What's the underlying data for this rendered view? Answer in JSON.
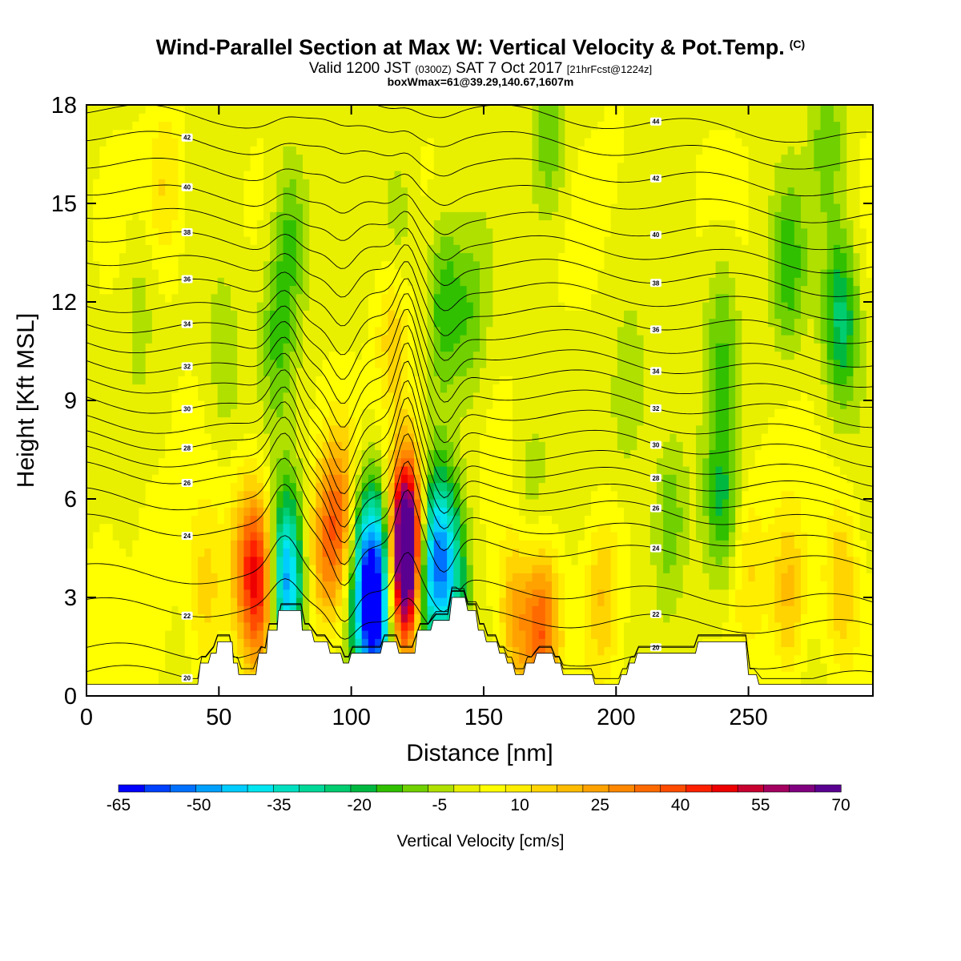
{
  "header": {
    "title": "Wind-Parallel Section at Max W: Vertical Velocity & Pot.Temp.",
    "copyright": "(C)",
    "valid_prefix": "Valid 1200 JST",
    "valid_utc": "(0300Z)",
    "valid_date": "SAT 7 Oct 2017",
    "forecast": "[21hrFcst@1224z]",
    "box_info": "boxWmax=61@39.29,140.67,1607m"
  },
  "chart_data": {
    "type": "heatmap",
    "title": "Wind-Parallel Section at Max W: Vertical Velocity & Pot.Temp.",
    "xlabel": "Distance [nm]",
    "ylabel": "Height [Kft MSL]",
    "xlim": [
      0,
      297
    ],
    "ylim": [
      0,
      18
    ],
    "x_ticks": [
      0,
      50,
      100,
      150,
      200,
      250
    ],
    "y_ticks": [
      0,
      3,
      6,
      9,
      12,
      15,
      18
    ],
    "colorbar": {
      "title": "Vertical Velocity [cm/s]",
      "tick_labels": [
        "-65",
        "-50",
        "-35",
        "-20",
        "-5",
        "10",
        "25",
        "40",
        "55",
        "70"
      ],
      "levels": [
        -65,
        -60,
        -55,
        -50,
        -45,
        -40,
        -35,
        -30,
        -25,
        -20,
        -15,
        -10,
        -5,
        0,
        5,
        10,
        15,
        20,
        25,
        30,
        35,
        40,
        45,
        50,
        55,
        60,
        65,
        70
      ],
      "colors": [
        "#0000ff",
        "#0040ff",
        "#0070ff",
        "#00a0ff",
        "#00ccff",
        "#00e5f0",
        "#00e0c0",
        "#00d898",
        "#00cc70",
        "#00b840",
        "#30c000",
        "#70d000",
        "#b0e000",
        "#e8f000",
        "#ffff00",
        "#ffee00",
        "#ffd400",
        "#ffbb00",
        "#ffa200",
        "#ff8800",
        "#ff6a00",
        "#ff4c00",
        "#ff2000",
        "#ee0000",
        "#c80030",
        "#a40060",
        "#800080",
        "#5a0090"
      ]
    },
    "w_features": [
      {
        "x": 8,
        "z": 3,
        "w": 5
      },
      {
        "x": 25,
        "z": 4,
        "w": 6
      },
      {
        "x": 30,
        "z": 15.5,
        "w": 12
      },
      {
        "x": 20,
        "z": 12,
        "w": -7
      },
      {
        "x": 45,
        "z": 3,
        "w": 14
      },
      {
        "x": 52,
        "z": 10,
        "w": -8
      },
      {
        "x": 60,
        "z": 4,
        "w": 22
      },
      {
        "x": 66,
        "z": 3.5,
        "w": 42
      },
      {
        "x": 72,
        "z": 11,
        "w": -14
      },
      {
        "x": 75,
        "z": 3.5,
        "w": -55
      },
      {
        "x": 77,
        "z": 14,
        "w": -16
      },
      {
        "x": 90,
        "z": 4.5,
        "w": 24
      },
      {
        "x": 97,
        "z": 5.5,
        "w": 28
      },
      {
        "x": 104,
        "z": 4.5,
        "w": -30
      },
      {
        "x": 108,
        "z": 2.3,
        "w": -58
      },
      {
        "x": 112,
        "z": 4,
        "w": -25
      },
      {
        "x": 116,
        "z": 11,
        "w": 16
      },
      {
        "x": 118,
        "z": 14,
        "w": -10
      },
      {
        "x": 121,
        "z": 5,
        "w": 55
      },
      {
        "x": 121,
        "z": 3.8,
        "w": 65
      },
      {
        "x": 127,
        "z": 3.5,
        "w": -40
      },
      {
        "x": 133,
        "z": 4.5,
        "w": -32
      },
      {
        "x": 138,
        "z": 3.5,
        "w": -25
      },
      {
        "x": 135,
        "z": 12,
        "w": -18
      },
      {
        "x": 145,
        "z": 11.5,
        "w": -12
      },
      {
        "x": 162,
        "z": 2.3,
        "w": 22
      },
      {
        "x": 172,
        "z": 2,
        "w": 34
      },
      {
        "x": 168,
        "z": 6,
        "w": -8
      },
      {
        "x": 175,
        "z": 17,
        "w": -14
      },
      {
        "x": 195,
        "z": 3,
        "w": 16
      },
      {
        "x": 205,
        "z": 9,
        "w": -10
      },
      {
        "x": 220,
        "z": 5.5,
        "w": -14
      },
      {
        "x": 240,
        "z": 6,
        "w": -18
      },
      {
        "x": 250,
        "z": 4,
        "w": 12
      },
      {
        "x": 265,
        "z": 3,
        "w": 18
      },
      {
        "x": 265,
        "z": 13,
        "w": -16
      },
      {
        "x": 285,
        "z": 11.5,
        "w": -26
      },
      {
        "x": 285,
        "z": 3.5,
        "w": 16
      },
      {
        "x": 240,
        "z": 11,
        "w": -14
      },
      {
        "x": 280,
        "z": 17,
        "w": -12
      },
      {
        "x": 200,
        "z": 16.5,
        "w": 2
      }
    ],
    "terrain_kft": [
      [
        0,
        0.35
      ],
      [
        42,
        0.35
      ],
      [
        43,
        1.0
      ],
      [
        46,
        1.0
      ],
      [
        47,
        1.3
      ],
      [
        49,
        1.3
      ],
      [
        49.5,
        1.65
      ],
      [
        55,
        1.65
      ],
      [
        55.5,
        1.0
      ],
      [
        57,
        1.0
      ],
      [
        57.5,
        0.65
      ],
      [
        64,
        0.65
      ],
      [
        65,
        1.3
      ],
      [
        68,
        1.3
      ],
      [
        68.5,
        2.0
      ],
      [
        72,
        2.0
      ],
      [
        72.5,
        2.6
      ],
      [
        81,
        2.6
      ],
      [
        81.5,
        2.0
      ],
      [
        85,
        2.0
      ],
      [
        86,
        1.65
      ],
      [
        91,
        1.65
      ],
      [
        92,
        1.3
      ],
      [
        96,
        1.3
      ],
      [
        97,
        1.0
      ],
      [
        99,
        1.0
      ],
      [
        100,
        1.3
      ],
      [
        111,
        1.3
      ],
      [
        112,
        1.65
      ],
      [
        117,
        1.65
      ],
      [
        118,
        1.3
      ],
      [
        124,
        1.3
      ],
      [
        125,
        2.0
      ],
      [
        130,
        2.0
      ],
      [
        131,
        2.3
      ],
      [
        137,
        2.3
      ],
      [
        138,
        3.0
      ],
      [
        143,
        3.0
      ],
      [
        144,
        2.6
      ],
      [
        147,
        2.6
      ],
      [
        148,
        2.0
      ],
      [
        150,
        2.0
      ],
      [
        151,
        1.65
      ],
      [
        155,
        1.65
      ],
      [
        156,
        1.3
      ],
      [
        158,
        1.3
      ],
      [
        159,
        1.0
      ],
      [
        161,
        1.0
      ],
      [
        162,
        0.65
      ],
      [
        165,
        0.65
      ],
      [
        166,
        1.0
      ],
      [
        169,
        1.0
      ],
      [
        170,
        1.3
      ],
      [
        176,
        1.3
      ],
      [
        177,
        1.0
      ],
      [
        179,
        1.0
      ],
      [
        180,
        0.65
      ],
      [
        191,
        0.65
      ],
      [
        192,
        0.35
      ],
      [
        201,
        0.35
      ],
      [
        202,
        0.65
      ],
      [
        204,
        0.65
      ],
      [
        205,
        1.0
      ],
      [
        207,
        1.0
      ],
      [
        208,
        1.3
      ],
      [
        230,
        1.3
      ],
      [
        231,
        1.65
      ],
      [
        249,
        1.65
      ],
      [
        250,
        0.65
      ],
      [
        253,
        0.65
      ],
      [
        254,
        0.35
      ],
      [
        297,
        0.35
      ]
    ],
    "theta_contours": [
      {
        "value": 20,
        "base_kft": 0.6,
        "label": "20"
      },
      {
        "value": 21,
        "base_kft": 1.2
      },
      {
        "value": 22,
        "base_kft": 2.4,
        "label": "22"
      },
      {
        "value": 23,
        "base_kft": 3.3
      },
      {
        "value": 24,
        "base_kft": 4.6,
        "label": "24"
      },
      {
        "value": 25,
        "base_kft": 5.3
      },
      {
        "value": 26,
        "base_kft": 6.0,
        "label": "26"
      },
      {
        "value": 27,
        "base_kft": 6.5
      },
      {
        "value": 28,
        "base_kft": 7.0,
        "label": "28"
      },
      {
        "value": 29,
        "base_kft": 7.5
      },
      {
        "value": 30,
        "base_kft": 8.1,
        "label": "30"
      },
      {
        "value": 31,
        "base_kft": 8.7
      },
      {
        "value": 32,
        "base_kft": 9.3,
        "label": "32"
      },
      {
        "value": 33,
        "base_kft": 9.9
      },
      {
        "value": 34,
        "base_kft": 10.5,
        "label": "34"
      },
      {
        "value": 35,
        "base_kft": 11.1
      },
      {
        "value": 36,
        "base_kft": 11.8,
        "label": "36"
      },
      {
        "value": 37,
        "base_kft": 12.5
      },
      {
        "value": 38,
        "base_kft": 13.2,
        "label": "38"
      },
      {
        "value": 39,
        "base_kft": 13.9
      },
      {
        "value": 40,
        "base_kft": 14.6,
        "label": "40"
      },
      {
        "value": 41,
        "base_kft": 15.4
      },
      {
        "value": 42,
        "base_kft": 16.2,
        "label": "42"
      },
      {
        "value": 43,
        "base_kft": 17.0
      },
      {
        "value": 44,
        "base_kft": 17.8,
        "label": "44"
      }
    ]
  }
}
